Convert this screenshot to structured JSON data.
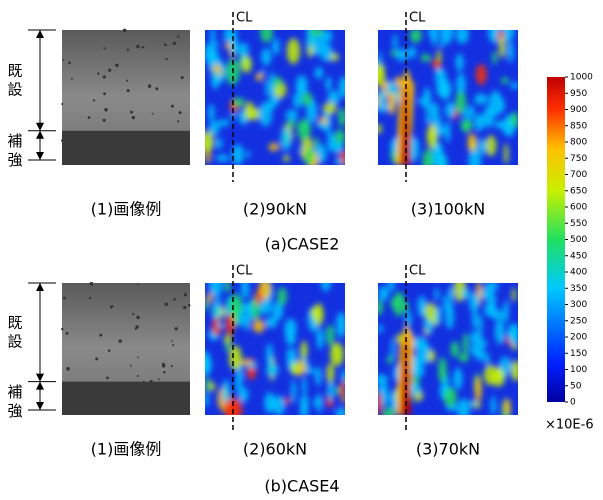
{
  "panels": [
    {
      "caption": "(a)CASE2",
      "side_labels": [
        "既設",
        "補強"
      ],
      "items": [
        {
          "caption": "(1)画像例"
        },
        {
          "caption": "(2)90kN",
          "cl": "CL"
        },
        {
          "caption": "(3)100kN",
          "cl": "CL"
        }
      ]
    },
    {
      "caption": "(b)CASE4",
      "side_labels": [
        "既設",
        "補強"
      ],
      "items": [
        {
          "caption": "(1)画像例"
        },
        {
          "caption": "(2)60kN",
          "cl": "CL"
        },
        {
          "caption": "(3)70kN",
          "cl": "CL"
        }
      ]
    }
  ],
  "colorbar": {
    "range": [
      0,
      1000
    ],
    "ticks": [
      0,
      50,
      100,
      150,
      200,
      250,
      300,
      350,
      400,
      450,
      500,
      550,
      600,
      650,
      700,
      750,
      800,
      850,
      900,
      950,
      1000
    ],
    "unit": "×10E-6"
  }
}
